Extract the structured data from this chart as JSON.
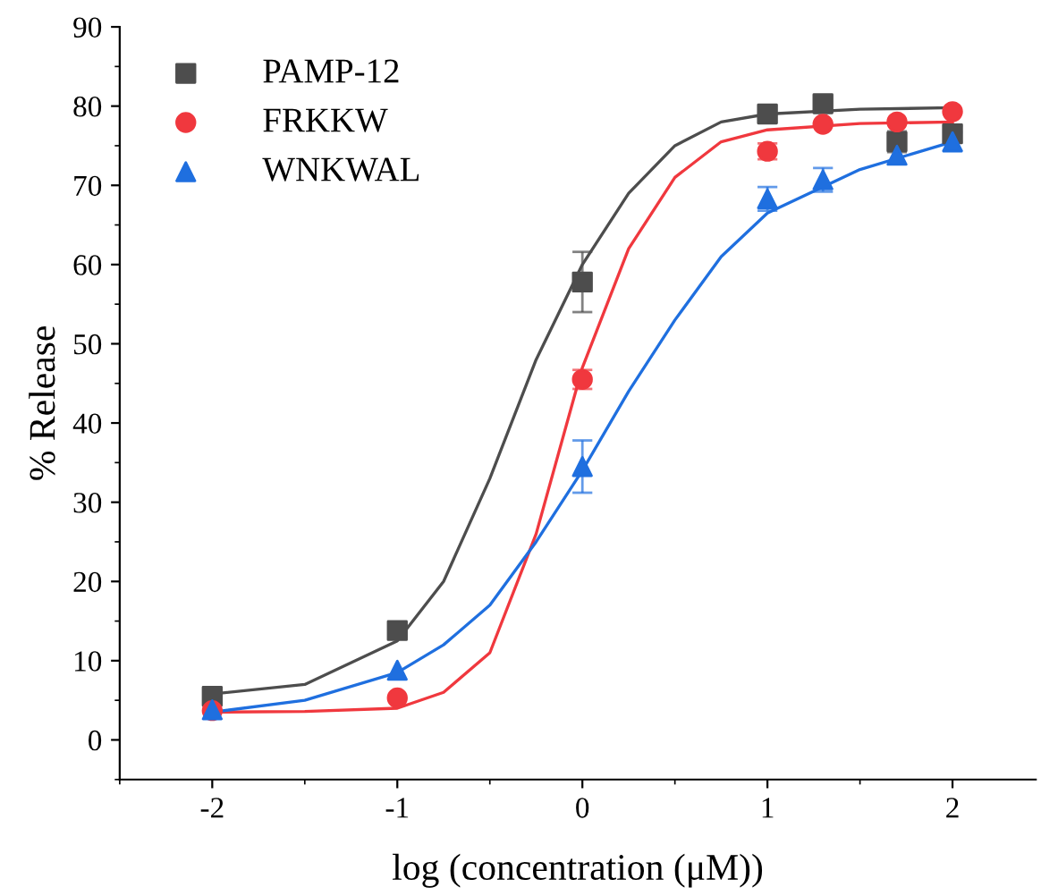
{
  "chart_data": {
    "type": "scatter",
    "xlabel": "log (concentration (μM))",
    "ylabel": "% Release",
    "xlim": [
      -2.5,
      2.45
    ],
    "xticks": [
      -2,
      -1,
      0,
      1,
      2
    ],
    "ylim": [
      -5,
      90
    ],
    "yticks": [
      0,
      10,
      20,
      30,
      40,
      50,
      60,
      70,
      80,
      90
    ],
    "grid": false,
    "legend": "top left",
    "series": [
      {
        "name": "PAMP-12",
        "marker": "square",
        "color": "#4d4d4d",
        "x": [
          -2,
          -1,
          0,
          1,
          1.3,
          1.7,
          2
        ],
        "values": [
          5.5,
          13.8,
          57.8,
          79,
          80.3,
          75.5,
          76.5
        ],
        "errors": [
          1,
          null,
          3.8,
          null,
          null,
          1.3,
          1
        ]
      },
      {
        "name": "FRKKW",
        "marker": "circle",
        "color": "#f0383e",
        "x": [
          -2,
          -1,
          0,
          1,
          1.3,
          1.7,
          2
        ],
        "values": [
          3.7,
          5.3,
          45.5,
          74.3,
          77.7,
          78.0,
          79.3
        ],
        "errors": [
          null,
          null,
          1.2,
          1,
          null,
          null,
          null
        ]
      },
      {
        "name": "WNKWAL",
        "marker": "triangle",
        "color": "#1f6fdf",
        "x": [
          -2,
          -1,
          0,
          1,
          1.3,
          1.7,
          2
        ],
        "values": [
          3.8,
          8.8,
          34.5,
          68.3,
          70.7,
          73.8,
          75.5
        ],
        "errors": [
          null,
          null,
          3.3,
          1.5,
          1.5,
          null,
          1.2
        ]
      },
      {
        "type": "line",
        "color": "#4d4d4d",
        "x": [
          -2,
          -1.5,
          -1,
          -0.75,
          -0.5,
          -0.25,
          0,
          0.25,
          0.5,
          0.75,
          1,
          1.5,
          2
        ],
        "values": [
          5.8,
          7,
          12.5,
          20,
          33,
          48,
          60,
          69,
          75,
          78,
          79,
          79.6,
          79.8
        ]
      },
      {
        "type": "line",
        "color": "#f0383e",
        "x": [
          -2,
          -1.5,
          -1,
          -0.75,
          -0.5,
          -0.25,
          0,
          0.25,
          0.5,
          0.75,
          1,
          1.5,
          2
        ],
        "values": [
          3.5,
          3.6,
          4,
          6,
          11,
          26,
          47,
          62,
          71,
          75.5,
          77,
          77.8,
          78
        ]
      },
      {
        "type": "line",
        "color": "#1f6fdf",
        "x": [
          -2,
          -1.5,
          -1,
          -0.75,
          -0.5,
          -0.25,
          0,
          0.25,
          0.5,
          0.75,
          1,
          1.5,
          2
        ],
        "values": [
          3.5,
          5,
          8.5,
          12,
          17,
          25,
          34,
          44,
          53,
          61,
          66.5,
          72,
          75.5
        ]
      }
    ]
  }
}
